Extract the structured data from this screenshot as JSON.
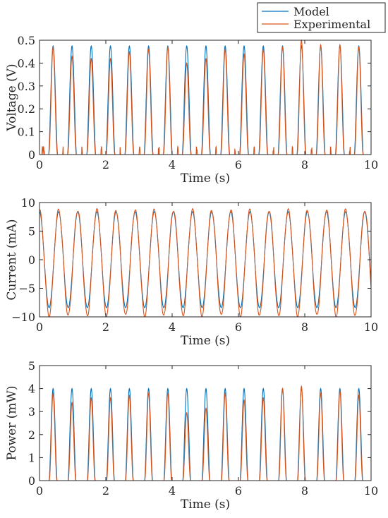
{
  "chart_data": [
    {
      "type": "line",
      "xlabel": "Time (s)",
      "ylabel": "Voltage (V)",
      "xlim": [
        0,
        10
      ],
      "ylim": [
        0,
        0.5
      ],
      "xticks": [
        "0",
        "2",
        "4",
        "6",
        "8",
        "10"
      ],
      "yticks": [
        "0",
        "0.1",
        "0.2",
        "0.3",
        "0.4",
        "0.5"
      ],
      "peak_times": [
        0.41,
        0.98,
        1.56,
        2.14,
        2.71,
        3.29,
        3.87,
        4.44,
        5.02,
        5.6,
        6.17,
        6.75,
        7.33,
        7.9,
        8.48,
        9.06,
        9.63
      ],
      "series": [
        {
          "name": "Model",
          "color": "#0072BD",
          "peaks": [
            0.475,
            0.475,
            0.475,
            0.475,
            0.475,
            0.475,
            0.475,
            0.475,
            0.475,
            0.475,
            0.475,
            0.475,
            0.475,
            0.475,
            0.475,
            0.475,
            0.475
          ]
        },
        {
          "name": "Experimental",
          "color": "#D95319",
          "peaks": [
            0.47,
            0.43,
            0.42,
            0.42,
            0.45,
            0.46,
            0.47,
            0.4,
            0.42,
            0.46,
            0.44,
            0.46,
            0.47,
            0.5,
            0.48,
            0.48,
            0.47
          ]
        }
      ]
    },
    {
      "type": "line",
      "xlabel": "Time (s)",
      "ylabel": "Current (mA)",
      "xlim": [
        0,
        10
      ],
      "ylim": [
        -10,
        10
      ],
      "xticks": [
        "0",
        "2",
        "4",
        "6",
        "8",
        "10"
      ],
      "yticks": [
        "-10",
        "-5",
        "0",
        "5",
        "10"
      ],
      "period": 0.577,
      "series": [
        {
          "name": "Model",
          "color": "#0072BD",
          "amplitude": 8.4
        },
        {
          "name": "Experimental",
          "color": "#D95319",
          "amplitude": 8.7,
          "min": -9.8
        }
      ]
    },
    {
      "type": "line",
      "xlabel": "Time (s)",
      "ylabel": "Power (mW)",
      "xlim": [
        0,
        10
      ],
      "ylim": [
        0,
        5
      ],
      "xticks": [
        "0",
        "2",
        "4",
        "6",
        "8",
        "10"
      ],
      "yticks": [
        "0",
        "1",
        "2",
        "3",
        "4",
        "5"
      ],
      "peak_times": [
        0.41,
        0.98,
        1.56,
        2.14,
        2.71,
        3.29,
        3.87,
        4.44,
        5.02,
        5.6,
        6.17,
        6.75,
        7.33,
        7.9,
        8.48,
        9.06,
        9.63
      ],
      "series": [
        {
          "name": "Model",
          "color": "#0072BD",
          "peaks": [
            4.0,
            4.0,
            4.0,
            4.0,
            4.0,
            4.0,
            4.0,
            4.0,
            4.0,
            4.0,
            4.0,
            4.0,
            4.0,
            4.0,
            4.0,
            4.0,
            4.0
          ]
        },
        {
          "name": "Experimental",
          "color": "#D95319",
          "peaks": [
            3.8,
            3.4,
            3.6,
            3.6,
            3.7,
            3.8,
            3.8,
            2.95,
            3.15,
            3.8,
            3.5,
            3.6,
            4.0,
            4.1,
            3.8,
            3.9,
            3.7
          ]
        }
      ]
    }
  ],
  "legend": {
    "position": "top-right",
    "entries": [
      {
        "label": "Model",
        "color": "#0072BD"
      },
      {
        "label": "Experimental",
        "color": "#D95319"
      }
    ]
  }
}
